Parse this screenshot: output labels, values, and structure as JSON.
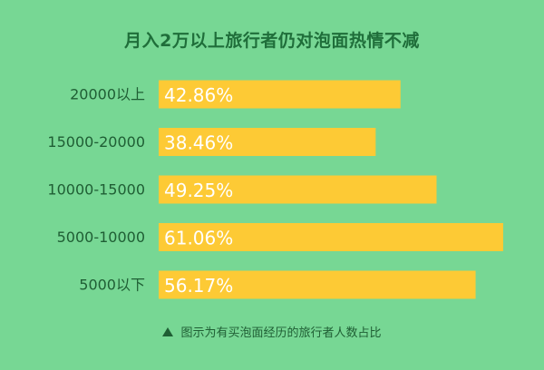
{
  "chart_data": {
    "type": "bar",
    "orientation": "horizontal",
    "title": "月入2万以上旅行者仍对泡面热情不减",
    "categories": [
      "20000以上",
      "15000-20000",
      "10000-15000",
      "5000-10000",
      "5000以下"
    ],
    "values": [
      42.86,
      38.46,
      49.25,
      61.06,
      56.17
    ],
    "value_labels": [
      "42.86%",
      "38.46%",
      "49.25%",
      "61.06%",
      "56.17%"
    ],
    "xlim": [
      0,
      61.06
    ],
    "grid": false,
    "legend": "none",
    "note": "图示为有买泡面经历的旅行者人数占比"
  },
  "colors": {
    "background": "#77d794",
    "bar": "#fdca35",
    "value_text": "#ffffff",
    "label_text": "#1f5e34",
    "title_text": "#1f6e3a"
  },
  "icons": {
    "note_marker": "triangle-icon"
  }
}
